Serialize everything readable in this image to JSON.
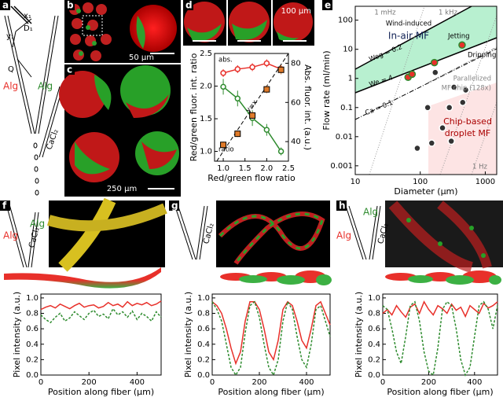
{
  "panel_labels": [
    "a",
    "b",
    "c",
    "d",
    "e",
    "f",
    "g",
    "h"
  ],
  "panel_a": {
    "labels": [
      "x₁",
      "y₁",
      "D₁",
      "Q",
      "Alg",
      "Alg",
      "CaCl₂"
    ]
  },
  "panel_b": {
    "scale_bar": "50 µm"
  },
  "panel_c": {
    "scale_bar": "250 µm"
  },
  "panel_d": {
    "scale_bar": "100 µm"
  },
  "bottom_panels": {
    "f": [
      "Alg",
      "Alg",
      "CaCl₂"
    ],
    "g": [
      "CaCl₂"
    ],
    "h": [
      "Alg",
      "Alg",
      "CaCl₂"
    ]
  },
  "chart_data": [
    {
      "type": "line",
      "xlabel": "Red/green flow ratio",
      "ylabel": "Red/green fluor. int. ratio",
      "y2label": "Abs. fluor. int. (a.u.)",
      "x": [
        1.0,
        1.33,
        1.67,
        2.0,
        2.33
      ],
      "xlim": [
        0.8,
        2.5
      ],
      "xticks": [
        {
          "value": 1,
          "label": "1.0"
        },
        {
          "value": 1.5,
          "label": "1.5"
        },
        {
          "value": 2,
          "label": "2.0"
        },
        {
          "value": 2.5,
          "label": "2.5"
        }
      ],
      "ylim": [
        0.85,
        2.5
      ],
      "yticks": [
        {
          "value": 1,
          "label": "1.0"
        },
        {
          "value": 1.5,
          "label": "1.5"
        },
        {
          "value": 2,
          "label": "2.0"
        },
        {
          "value": 2.5,
          "label": "2.5"
        }
      ],
      "y2lim": [
        30,
        85
      ],
      "y2ticks": [
        40,
        60,
        80
      ],
      "series": [
        {
          "color": "#e8302a",
          "axis": "y2",
          "marker": "circle",
          "linestyle": "solid",
          "values": [
            75,
            77,
            78,
            80,
            77
          ],
          "errors": [
            2,
            2,
            2,
            2,
            2
          ]
        },
        {
          "color": "#2e8b2e",
          "axis": "y2",
          "marker": "circle",
          "linestyle": "solid",
          "values": [
            68,
            62,
            52,
            46,
            35
          ],
          "errors": [
            4,
            4,
            4,
            3,
            2
          ]
        },
        {
          "color": "#e07b2a",
          "marker": "square",
          "linestyle": "none",
          "values": [
            1.1,
            1.27,
            1.55,
            1.95,
            2.25
          ],
          "errors": [
            0.05,
            0.05,
            0.06,
            0.06,
            0.07
          ]
        }
      ],
      "annotations": {
        "abs": "abs.",
        "ratio": "ratio",
        "yx": "y=x"
      }
    },
    {
      "type": "scatter",
      "xscale": "log",
      "yscale": "log",
      "xlabel": "Diameter (µm)",
      "ylabel": "Flow rate (ml/min)",
      "xlim": [
        10,
        1500
      ],
      "xticks": [
        10,
        100,
        1000
      ],
      "ylim": [
        0.0005,
        300
      ],
      "yticks": [
        0.001,
        0.01,
        0.1,
        1,
        10,
        100
      ],
      "series": [
        {
          "color": "#e8302a",
          "edge": "#2e8b2e",
          "x": [
            65,
            75,
            165,
            440
          ],
          "values": [
            1.1,
            1.4,
            3.5,
            14
          ]
        },
        {
          "color": "#333333",
          "edge": "#ffffff",
          "x": [
            90,
            130,
            150,
            170,
            220,
            280,
            300,
            330,
            450,
            500
          ],
          "values": [
            0.004,
            0.1,
            0.006,
            1.6,
            0.02,
            0.1,
            0.007,
            0.5,
            0.15,
            0.4
          ]
        }
      ],
      "annotations": {
        "mhz": "1 mHz",
        "khz": "1 kHz",
        "hz": "1 Hz",
        "inair": "In-air MF",
        "wind": "Wind-induced",
        "jet": "Jetting",
        "drip": "Dripping",
        "weg": "Weg = 0.2",
        "we": "We = 4",
        "ca": "Ca = 0.1",
        "par1": "Parallelized",
        "par2": "MF chip (128x)",
        "chip1": "Chip-based",
        "chip2": "droplet MF"
      }
    },
    {
      "type": "line",
      "xlabel": "Position along fiber (µm)",
      "ylabel": "Pixel intensity (a.u.)",
      "x": [
        0,
        20,
        40,
        60,
        80,
        100,
        120,
        140,
        160,
        180,
        200,
        220,
        240,
        260,
        280,
        300,
        320,
        340,
        360,
        380,
        400,
        420,
        440,
        460,
        480,
        500
      ],
      "xlim": [
        0,
        500
      ],
      "xticks": [
        0,
        200,
        400
      ],
      "ylim": [
        0,
        1.05
      ],
      "yticks": [
        {
          "value": 0,
          "label": "0.0"
        },
        {
          "value": 0.2,
          "label": "0.2"
        },
        {
          "value": 0.4,
          "label": "0.4"
        },
        {
          "value": 0.6,
          "label": "0.6"
        },
        {
          "value": 0.8,
          "label": "0.8"
        },
        {
          "value": 1,
          "label": "1.0"
        }
      ],
      "series": [
        {
          "color": "#e8302a",
          "linestyle": "solid",
          "values": [
            0.85,
            0.88,
            0.9,
            0.87,
            0.92,
            0.89,
            0.86,
            0.9,
            0.93,
            0.88,
            0.9,
            0.91,
            0.87,
            0.89,
            0.94,
            0.9,
            0.92,
            0.88,
            0.95,
            0.9,
            0.93,
            0.91,
            0.94,
            0.9,
            0.92,
            0.96
          ]
        },
        {
          "color": "#2e8b2e",
          "linestyle": "dashed",
          "values": [
            0.78,
            0.72,
            0.68,
            0.75,
            0.8,
            0.7,
            0.74,
            0.82,
            0.77,
            0.72,
            0.8,
            0.84,
            0.76,
            0.79,
            0.73,
            0.86,
            0.78,
            0.82,
            0.75,
            0.83,
            0.72,
            0.8,
            0.76,
            0.7,
            0.82,
            0.75
          ]
        }
      ]
    },
    {
      "type": "line",
      "xlabel": "Position along fiber (µm)",
      "ylabel": "Pixel intensity (a.u.)",
      "x": [
        0,
        20,
        40,
        60,
        80,
        100,
        120,
        140,
        160,
        180,
        200,
        220,
        240,
        260,
        280,
        300,
        320,
        340,
        360,
        380,
        400,
        420,
        440,
        460,
        480,
        500
      ],
      "xlim": [
        0,
        500
      ],
      "xticks": [
        0,
        200,
        400
      ],
      "ylim": [
        0,
        1.05
      ],
      "yticks": [
        {
          "value": 0,
          "label": "0.0"
        },
        {
          "value": 0.2,
          "label": "0.2"
        },
        {
          "value": 0.4,
          "label": "0.4"
        },
        {
          "value": 0.6,
          "label": "0.6"
        },
        {
          "value": 0.8,
          "label": "0.8"
        },
        {
          "value": 1,
          "label": "1.0"
        }
      ],
      "series": [
        {
          "color": "#e8302a",
          "linestyle": "solid",
          "values": [
            0.95,
            0.9,
            0.8,
            0.6,
            0.35,
            0.15,
            0.3,
            0.7,
            0.95,
            0.95,
            0.85,
            0.6,
            0.3,
            0.2,
            0.45,
            0.85,
            0.95,
            0.9,
            0.7,
            0.45,
            0.35,
            0.6,
            0.9,
            0.95,
            0.8,
            0.65
          ]
        },
        {
          "color": "#2e8b2e",
          "linestyle": "dashed",
          "values": [
            0.95,
            0.85,
            0.7,
            0.4,
            0.1,
            0.0,
            0.1,
            0.55,
            0.9,
            0.95,
            0.75,
            0.4,
            0.1,
            0.0,
            0.2,
            0.7,
            0.95,
            0.85,
            0.5,
            0.2,
            0.1,
            0.4,
            0.85,
            0.9,
            0.7,
            0.5
          ]
        }
      ]
    },
    {
      "type": "line",
      "xlabel": "Position along fiber (µm)",
      "ylabel": "Pixel intensity (a.u.)",
      "x": [
        0,
        20,
        40,
        60,
        80,
        100,
        120,
        140,
        160,
        180,
        200,
        220,
        240,
        260,
        280,
        300,
        320,
        340,
        360,
        380,
        400,
        420,
        440,
        460,
        480,
        500
      ],
      "xlim": [
        0,
        500
      ],
      "xticks": [
        0,
        200,
        400
      ],
      "ylim": [
        0,
        1.05
      ],
      "yticks": [
        {
          "value": 0,
          "label": "0.0"
        },
        {
          "value": 0.2,
          "label": "0.2"
        },
        {
          "value": 0.4,
          "label": "0.4"
        },
        {
          "value": 0.6,
          "label": "0.6"
        },
        {
          "value": 0.8,
          "label": "0.8"
        },
        {
          "value": 1,
          "label": "1.0"
        }
      ],
      "series": [
        {
          "color": "#e8302a",
          "linestyle": "solid",
          "values": [
            0.8,
            0.85,
            0.78,
            0.9,
            0.82,
            0.75,
            0.88,
            0.92,
            0.8,
            0.95,
            0.85,
            0.78,
            0.9,
            0.86,
            0.8,
            0.92,
            0.84,
            0.88,
            0.76,
            0.9,
            0.85,
            0.8,
            0.93,
            0.87,
            0.9,
            0.95
          ]
        },
        {
          "color": "#2e8b2e",
          "linestyle": "dashed",
          "values": [
            0.9,
            0.85,
            0.6,
            0.3,
            0.15,
            0.5,
            0.9,
            0.95,
            0.7,
            0.3,
            0.05,
            0.0,
            0.35,
            0.85,
            0.95,
            0.9,
            0.6,
            0.2,
            0.0,
            0.1,
            0.5,
            0.9,
            0.95,
            0.85,
            0.6,
            0.9
          ]
        }
      ]
    }
  ]
}
